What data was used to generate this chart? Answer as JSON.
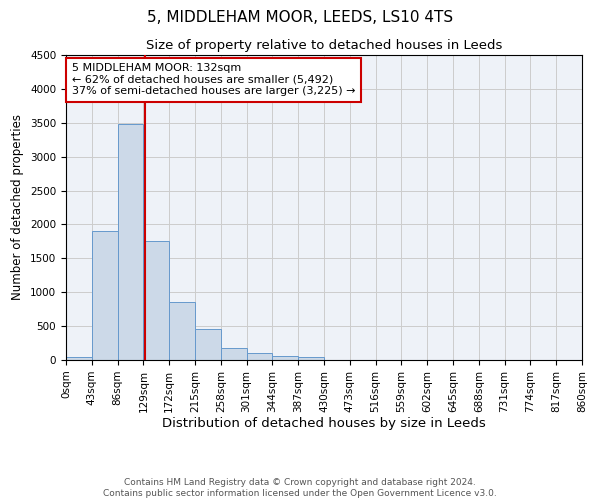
{
  "title": "5, MIDDLEHAM MOOR, LEEDS, LS10 4TS",
  "subtitle": "Size of property relative to detached houses in Leeds",
  "xlabel": "Distribution of detached houses by size in Leeds",
  "ylabel": "Number of detached properties",
  "bin_edges": [
    0,
    43,
    86,
    129,
    172,
    215,
    258,
    301,
    344,
    387,
    430,
    473,
    516,
    559,
    602,
    645,
    688,
    731,
    774,
    817,
    860
  ],
  "bar_heights": [
    50,
    1900,
    3480,
    1750,
    850,
    460,
    175,
    100,
    60,
    40,
    0,
    0,
    0,
    0,
    0,
    0,
    0,
    0,
    0,
    0
  ],
  "bar_color": "#ccd9e8",
  "bar_edge_color": "#6699cc",
  "vline_x": 132,
  "vline_color": "#cc0000",
  "annotation_text": "5 MIDDLEHAM MOOR: 132sqm\n← 62% of detached houses are smaller (5,492)\n37% of semi-detached houses are larger (3,225) →",
  "annotation_box_color": "#cc0000",
  "ylim": [
    0,
    4500
  ],
  "yticks": [
    0,
    500,
    1000,
    1500,
    2000,
    2500,
    3000,
    3500,
    4000,
    4500
  ],
  "grid_color": "#cccccc",
  "bg_color": "#eef2f8",
  "footer": "Contains HM Land Registry data © Crown copyright and database right 2024.\nContains public sector information licensed under the Open Government Licence v3.0.",
  "title_fontsize": 11,
  "subtitle_fontsize": 9.5,
  "xlabel_fontsize": 9.5,
  "ylabel_fontsize": 8.5,
  "tick_fontsize": 7.5,
  "annotation_fontsize": 8,
  "footer_fontsize": 6.5
}
